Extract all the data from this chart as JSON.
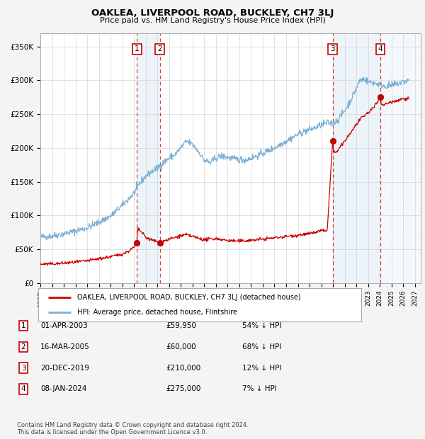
{
  "title": "OAKLEA, LIVERPOOL ROAD, BUCKLEY, CH7 3LJ",
  "subtitle": "Price paid vs. HM Land Registry's House Price Index (HPI)",
  "xlim_start": 1995.0,
  "xlim_end": 2027.5,
  "ylim": [
    0,
    370000
  ],
  "yticks": [
    0,
    50000,
    100000,
    150000,
    200000,
    250000,
    300000,
    350000
  ],
  "ytick_labels": [
    "£0",
    "£50K",
    "£100K",
    "£150K",
    "£200K",
    "£250K",
    "£300K",
    "£350K"
  ],
  "fig_bg_color": "#f4f4f4",
  "plot_bg_color": "#ffffff",
  "grid_color": "#cccccc",
  "hpi_line_color": "#7ab0d4",
  "sale_line_color": "#cc0000",
  "sale_marker_color": "#cc0000",
  "dashed_line_color": "#cc0000",
  "shade_color": "#cce0f0",
  "sale_points": [
    {
      "year": 2003.25,
      "price": 59950,
      "label": "1"
    },
    {
      "year": 2005.21,
      "price": 60000,
      "label": "2"
    },
    {
      "year": 2019.97,
      "price": 210000,
      "label": "3"
    },
    {
      "year": 2024.04,
      "price": 275000,
      "label": "4"
    }
  ],
  "legend_entries": [
    {
      "label": "OAKLEA, LIVERPOOL ROAD, BUCKLEY, CH7 3LJ (detached house)",
      "color": "#cc0000"
    },
    {
      "label": "HPI: Average price, detached house, Flintshire",
      "color": "#7ab0d4"
    }
  ],
  "table_rows": [
    {
      "num": "1",
      "date": "01-APR-2003",
      "price": "£59,950",
      "hpi": "54% ↓ HPI"
    },
    {
      "num": "2",
      "date": "16-MAR-2005",
      "price": "£60,000",
      "hpi": "68% ↓ HPI"
    },
    {
      "num": "3",
      "date": "20-DEC-2019",
      "price": "£210,000",
      "hpi": "12% ↓ HPI"
    },
    {
      "num": "4",
      "date": "08-JAN-2024",
      "price": "£275,000",
      "hpi": "7% ↓ HPI"
    }
  ],
  "footnote": "Contains HM Land Registry data © Crown copyright and database right 2024.\nThis data is licensed under the Open Government Licence v3.0.",
  "xticks": [
    1995,
    1996,
    1997,
    1998,
    1999,
    2000,
    2001,
    2002,
    2003,
    2004,
    2005,
    2006,
    2007,
    2008,
    2009,
    2010,
    2011,
    2012,
    2013,
    2014,
    2015,
    2016,
    2017,
    2018,
    2019,
    2020,
    2021,
    2022,
    2023,
    2024,
    2025,
    2026,
    2027
  ]
}
